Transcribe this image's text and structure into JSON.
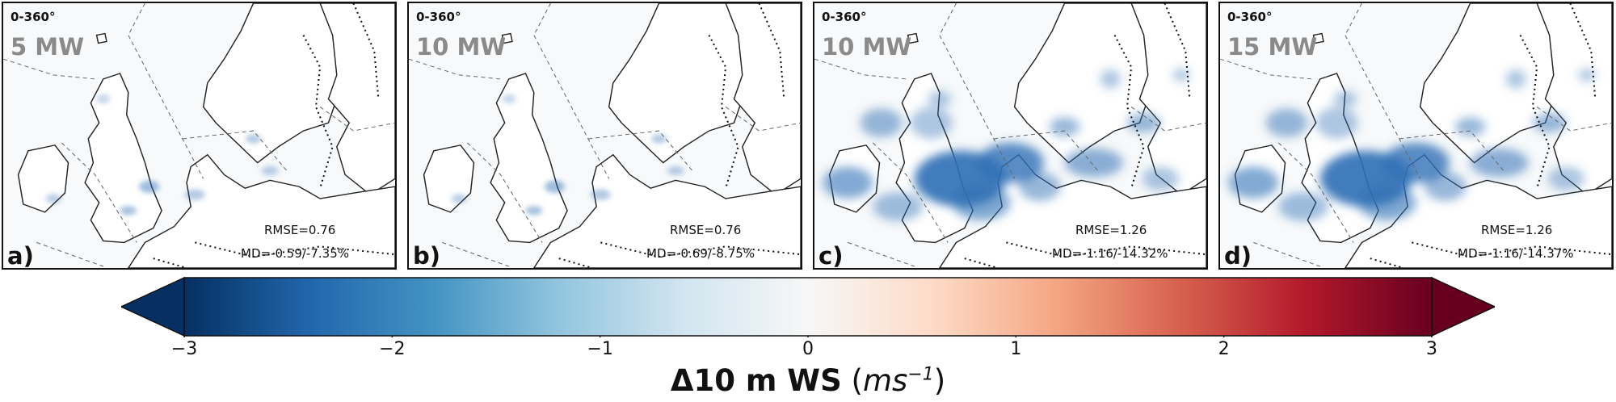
{
  "panels": [
    {
      "range": "0-360°",
      "caption": "5 MW",
      "rmse": "RMSE=0.76",
      "md": "MD=-0.59/-7.35%",
      "letter": "a)",
      "intensity": 0.25
    },
    {
      "range": "0-360°",
      "caption": "10 MW",
      "rmse": "RMSE=0.76",
      "md": "MD=-0.69/-8.75%",
      "letter": "b)",
      "intensity": 0.35
    },
    {
      "range": "0-360°",
      "caption": "10 MW",
      "rmse": "RMSE=1.26",
      "md": "MD=-1.16/-14.32%",
      "letter": "c)",
      "intensity": 1.0
    },
    {
      "range": "0-360°",
      "caption": "15 MW",
      "rmse": "RMSE=1.26",
      "md": "MD=-1.16/-14.37%",
      "letter": "d)",
      "intensity": 1.0
    }
  ],
  "colorbar": {
    "min": -3,
    "max": 3,
    "ticks": [
      "−3",
      "−2",
      "−1",
      "0",
      "1",
      "2",
      "3"
    ],
    "tick_values": [
      -3,
      -2,
      -1,
      0,
      1,
      2,
      3
    ],
    "colors": [
      "#053061",
      "#2166ac",
      "#4393c3",
      "#92c5de",
      "#d1e5f0",
      "#f7f7f7",
      "#fddbc7",
      "#f4a582",
      "#d6604d",
      "#b2182b",
      "#67001f"
    ],
    "label_main": "Δ10 m WS",
    "label_unit": "ms",
    "label_exp": "−1"
  },
  "colors": {
    "land": "#ffffff",
    "sea": "#f7f9fa",
    "reduction": "#2f6fb5"
  }
}
